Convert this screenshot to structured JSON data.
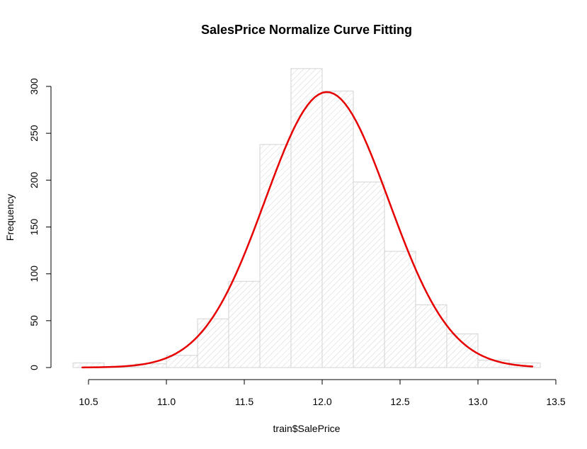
{
  "chart_data": {
    "type": "bar",
    "title": "SalesPrice Normalize Curve Fitting",
    "xlabel": "train$SalePrice",
    "ylabel": "Frequency",
    "xlim": [
      10.4,
      13.5
    ],
    "ylim": [
      0,
      320
    ],
    "xticks": [
      10.5,
      11.0,
      11.5,
      12.0,
      12.5,
      13.0,
      13.5
    ],
    "xtick_labels": [
      "10.5",
      "11.0",
      "11.5",
      "12.0",
      "12.5",
      "13.0",
      "13.5"
    ],
    "yticks": [
      0,
      50,
      100,
      150,
      200,
      250,
      300
    ],
    "ytick_labels": [
      "0",
      "50",
      "100",
      "150",
      "200",
      "250",
      "300"
    ],
    "grid": false,
    "bins": [
      {
        "start": 10.4,
        "end": 10.6,
        "count": 5
      },
      {
        "start": 10.6,
        "end": 10.8,
        "count": 1
      },
      {
        "start": 10.8,
        "end": 11.0,
        "count": 4
      },
      {
        "start": 11.0,
        "end": 11.2,
        "count": 13
      },
      {
        "start": 11.2,
        "end": 11.4,
        "count": 52
      },
      {
        "start": 11.4,
        "end": 11.6,
        "count": 92
      },
      {
        "start": 11.6,
        "end": 11.8,
        "count": 238
      },
      {
        "start": 11.8,
        "end": 12.0,
        "count": 319
      },
      {
        "start": 12.0,
        "end": 12.2,
        "count": 295
      },
      {
        "start": 12.2,
        "end": 12.4,
        "count": 198
      },
      {
        "start": 12.4,
        "end": 12.6,
        "count": 124
      },
      {
        "start": 12.6,
        "end": 12.8,
        "count": 67
      },
      {
        "start": 12.8,
        "end": 13.0,
        "count": 36
      },
      {
        "start": 13.0,
        "end": 13.2,
        "count": 8
      },
      {
        "start": 13.2,
        "end": 13.4,
        "count": 5
      }
    ],
    "curve": {
      "mean": 12.03,
      "sd": 0.397,
      "peak": 294,
      "x_range": [
        10.46,
        13.35
      ]
    },
    "colors": {
      "bar_fill": "#ffffff",
      "bar_border": "#d3d3d3",
      "hatch": "#d3d3d3",
      "curve": "#e60000",
      "axis": "#000000"
    }
  }
}
